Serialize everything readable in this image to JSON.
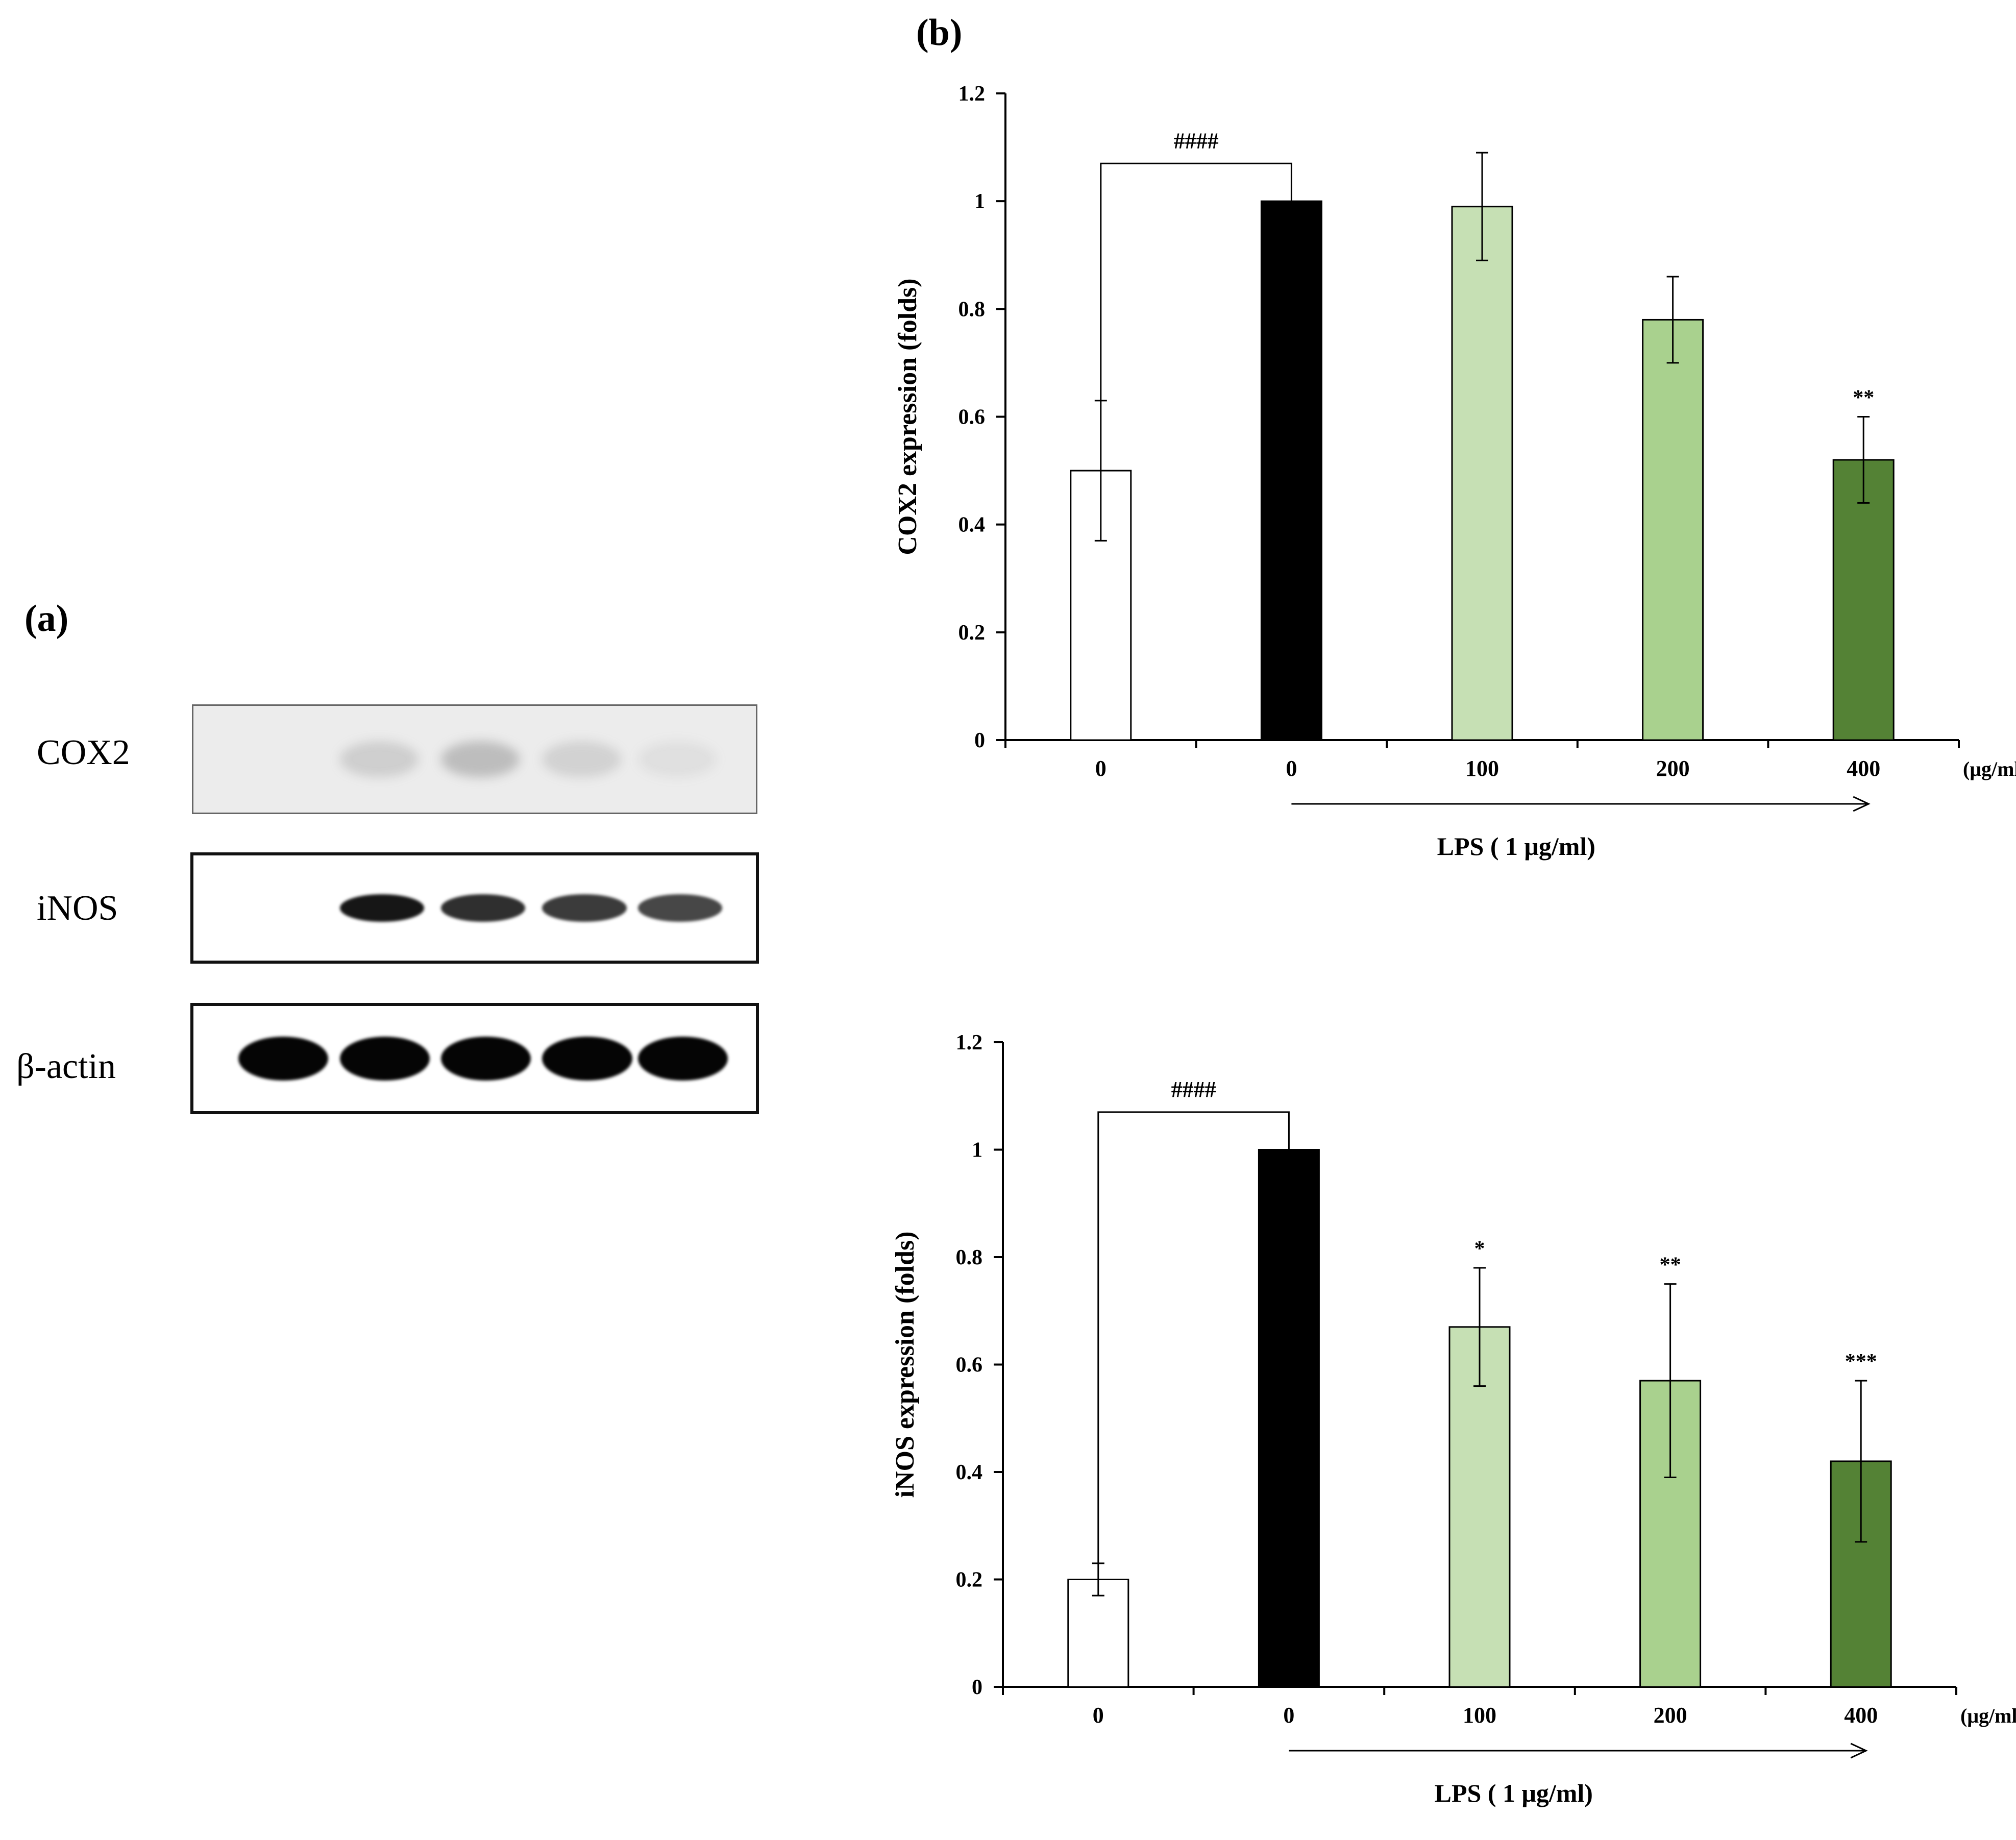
{
  "panel_a": {
    "label": "(a)",
    "blots": [
      {
        "name": "COX2",
        "band_intensity": [
          0.0,
          0.25,
          0.4,
          0.22,
          0.1
        ]
      },
      {
        "name": "iNOS",
        "band_intensity": [
          0.0,
          0.95,
          0.85,
          0.8,
          0.75
        ]
      },
      {
        "name": "β-actin",
        "band_intensity": [
          1.0,
          1.0,
          1.0,
          1.0,
          1.0
        ]
      }
    ]
  },
  "panel_b": {
    "label": "(b)"
  },
  "colors": {
    "control": "#ffffff",
    "lps": "#000000",
    "dose_100": "#c6e0b4",
    "dose_200": "#a9d18e",
    "dose_400": "#548235"
  },
  "chart_data": [
    {
      "type": "bar",
      "categories": [
        "0",
        "0",
        "100",
        "200",
        "400"
      ],
      "unit_label": "(μg/ml)",
      "values": [
        0.5,
        1.0,
        0.99,
        0.78,
        0.52
      ],
      "errors": [
        0.13,
        0.0,
        0.1,
        0.08,
        0.08
      ],
      "significance": [
        "",
        "",
        "",
        "",
        "**"
      ],
      "bracket": {
        "from": 0,
        "to": 1,
        "label": "####"
      },
      "ylabel": "COX2  expression (folds)",
      "ylim": [
        0,
        1.2
      ],
      "yticks": [
        "0",
        "0.2",
        "0.4",
        "0.6",
        "0.8",
        "1",
        "1.2"
      ],
      "lps_label": "LPS ( 1 μg/ml)"
    },
    {
      "type": "bar",
      "categories": [
        "0",
        "0",
        "100",
        "200",
        "400"
      ],
      "unit_label": "(μg/ml)",
      "values": [
        0.2,
        1.0,
        0.67,
        0.57,
        0.42
      ],
      "errors": [
        0.03,
        0.0,
        0.11,
        0.18,
        0.15
      ],
      "significance": [
        "",
        "",
        "*",
        "**",
        "***"
      ],
      "bracket": {
        "from": 0,
        "to": 1,
        "label": "####"
      },
      "ylabel": "iNOS expression (folds)",
      "ylim": [
        0,
        1.2
      ],
      "yticks": [
        "0",
        "0.2",
        "0.4",
        "0.6",
        "0.8",
        "1",
        "1.2"
      ],
      "lps_label": "LPS ( 1 μg/ml)"
    }
  ]
}
